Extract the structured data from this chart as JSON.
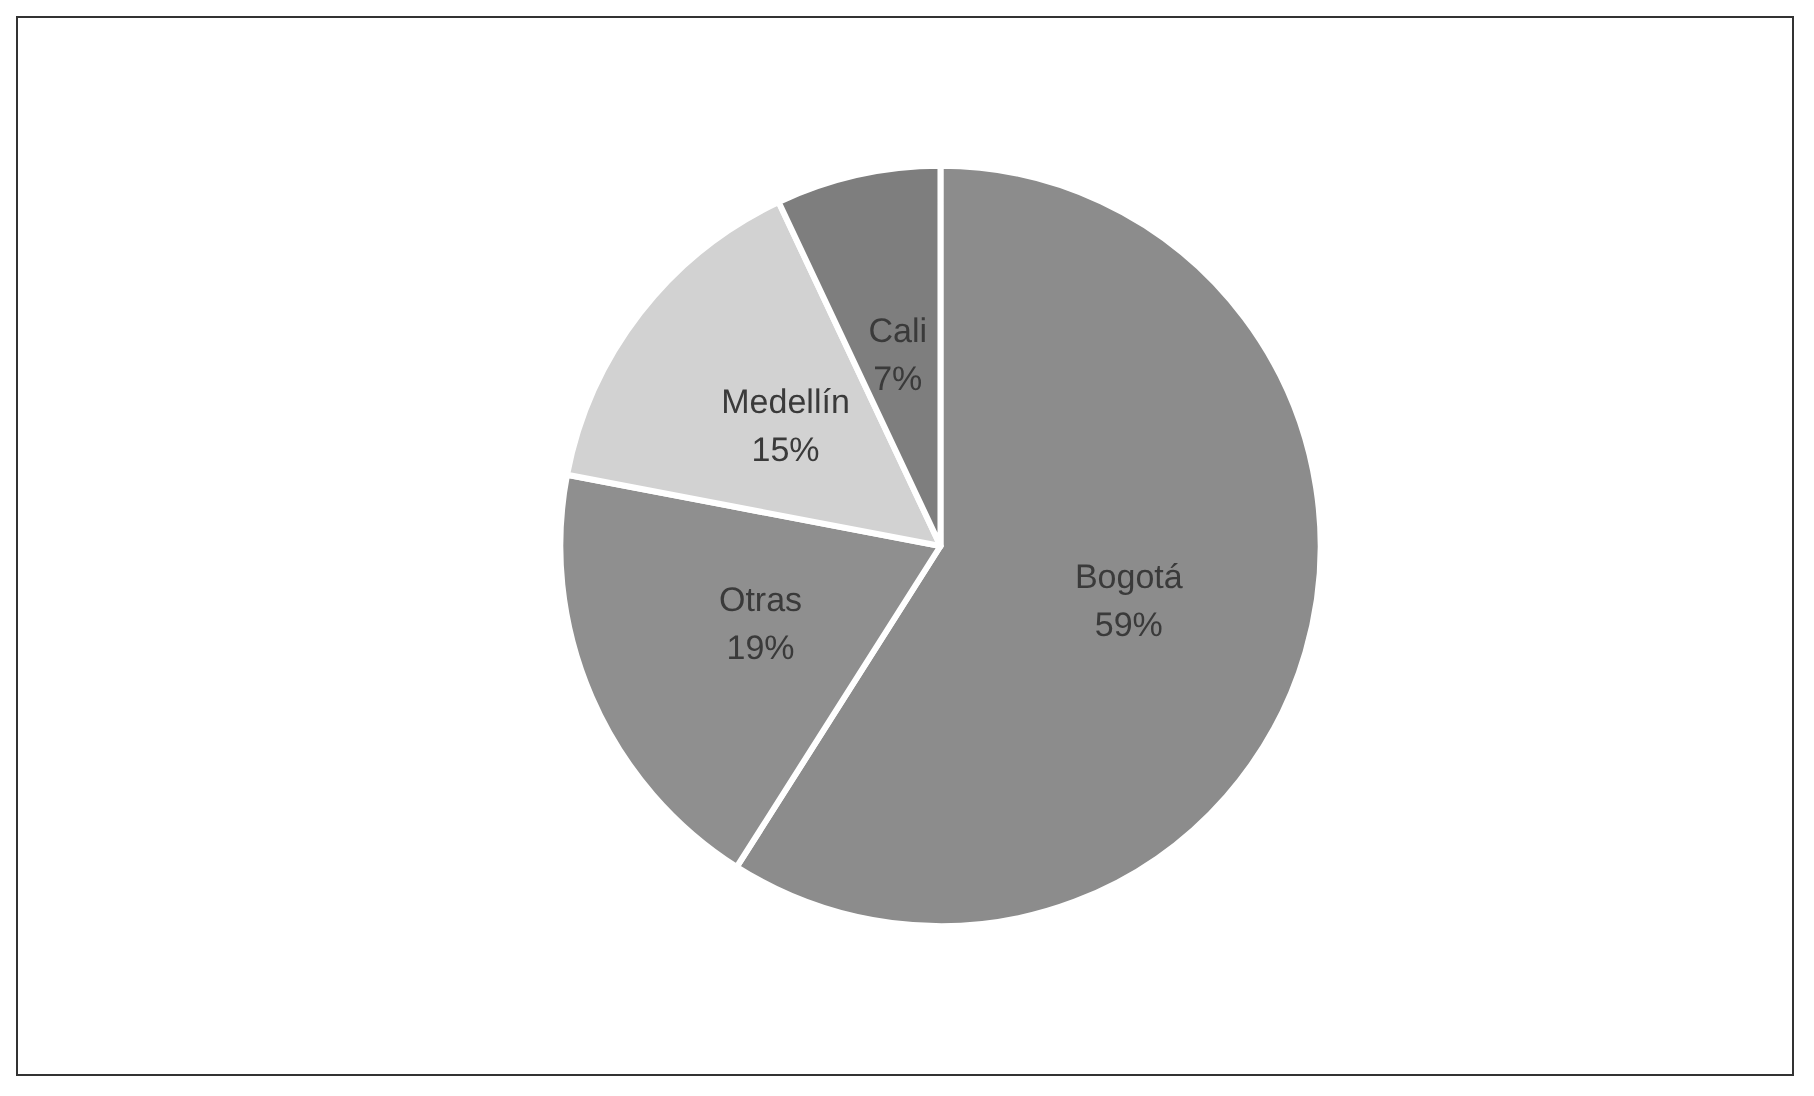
{
  "chart_data": {
    "type": "pie",
    "categories": [
      "Bogotá",
      "Otras",
      "Medellín",
      "Cali"
    ],
    "values": [
      59,
      19,
      15,
      7
    ],
    "value_labels": [
      "59%",
      "19%",
      "15%",
      "7%"
    ],
    "colors": [
      "#8c8c8c",
      "#8f8f8f",
      "#d2d2d2",
      "#7e7e7e"
    ],
    "legend": false
  }
}
